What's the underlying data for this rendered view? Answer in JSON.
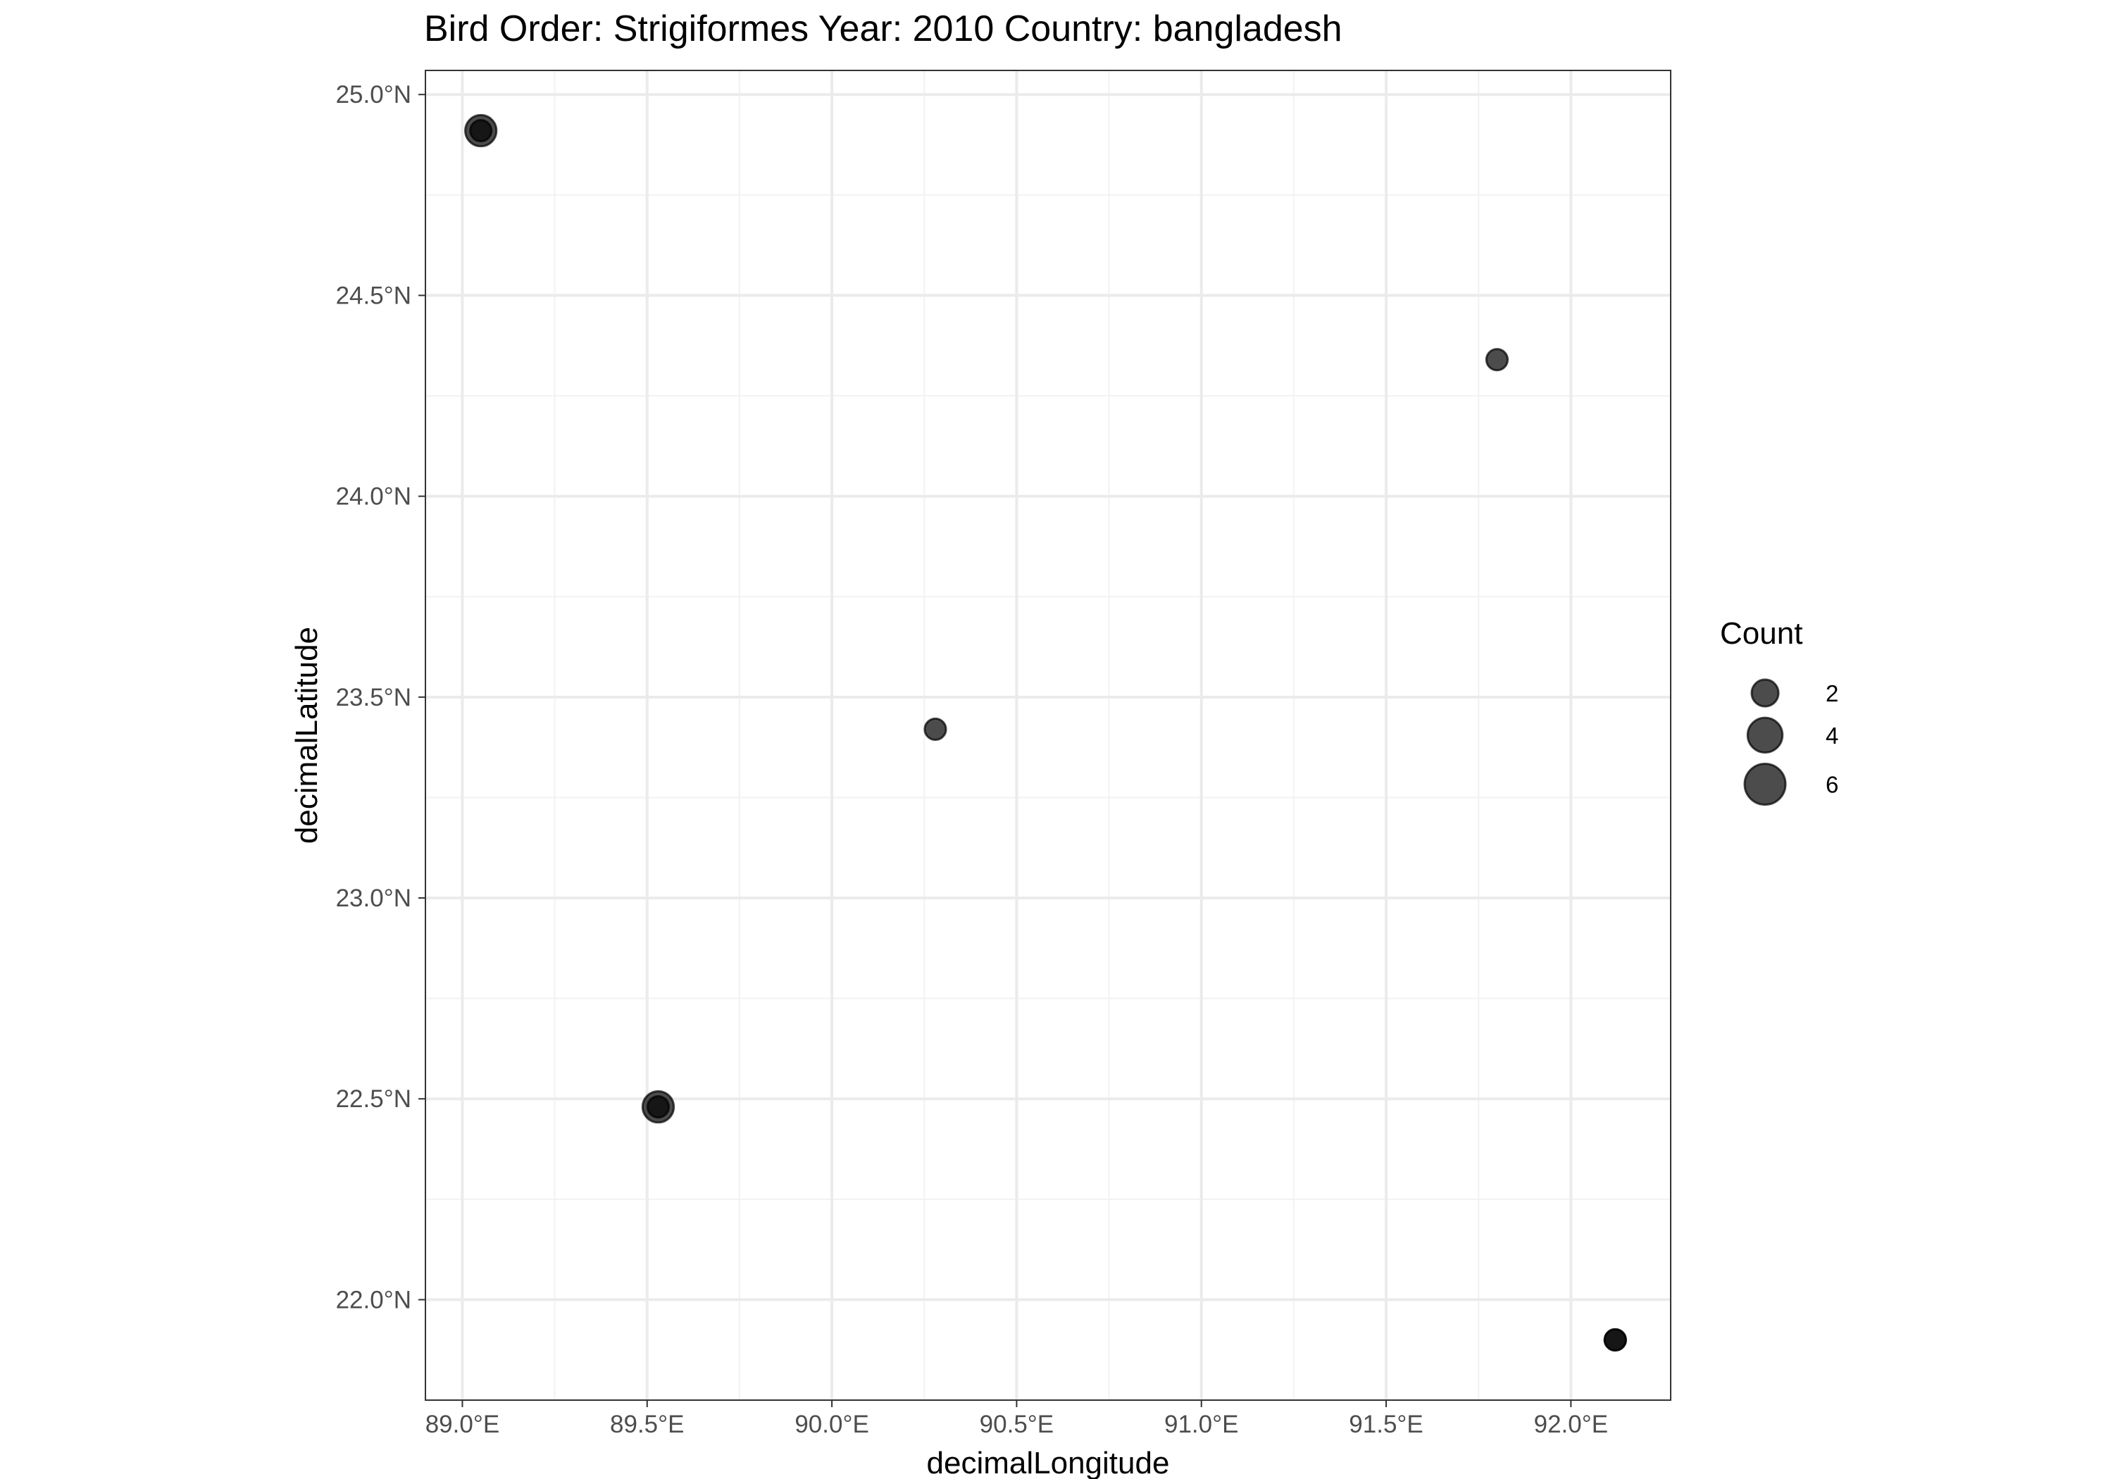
{
  "chart_data": {
    "type": "scatter",
    "title": "Bird Order: Strigiformes Year: 2010 Country: bangladesh",
    "xlabel": "decimalLongitude",
    "ylabel": "decimalLatitude",
    "xlim": [
      88.9,
      92.27
    ],
    "ylim": [
      21.75,
      25.06
    ],
    "x_ticks": [
      {
        "value": 89.0,
        "label": "89.0°E"
      },
      {
        "value": 89.5,
        "label": "89.5°E"
      },
      {
        "value": 90.0,
        "label": "90.0°E"
      },
      {
        "value": 90.5,
        "label": "90.5°E"
      },
      {
        "value": 91.0,
        "label": "91.0°E"
      },
      {
        "value": 91.5,
        "label": "91.5°E"
      },
      {
        "value": 92.0,
        "label": "92.0°E"
      }
    ],
    "y_ticks": [
      {
        "value": 22.0,
        "label": "22.0°N"
      },
      {
        "value": 22.5,
        "label": "22.5°N"
      },
      {
        "value": 23.0,
        "label": "23.0°N"
      },
      {
        "value": 23.5,
        "label": "23.5°N"
      },
      {
        "value": 24.0,
        "label": "24.0°N"
      },
      {
        "value": 24.5,
        "label": "24.5°N"
      },
      {
        "value": 25.0,
        "label": "25.0°N"
      }
    ],
    "grid": true,
    "points": [
      {
        "x": 89.05,
        "y": 24.91,
        "count": 3
      },
      {
        "x": 89.05,
        "y": 24.91,
        "count": 1
      },
      {
        "x": 89.53,
        "y": 22.48,
        "count": 3
      },
      {
        "x": 89.53,
        "y": 22.48,
        "count": 1
      },
      {
        "x": 90.28,
        "y": 23.42,
        "count": 1
      },
      {
        "x": 91.8,
        "y": 24.34,
        "count": 1
      },
      {
        "x": 92.12,
        "y": 21.9,
        "count": 1
      },
      {
        "x": 92.12,
        "y": 21.9,
        "count": 1
      }
    ],
    "point_color": "#000000",
    "point_alpha": 0.7,
    "legend": {
      "title": "Count",
      "position": "right",
      "entries": [
        {
          "value": 2,
          "label": "2"
        },
        {
          "value": 4,
          "label": "4"
        },
        {
          "value": 6,
          "label": "6"
        }
      ]
    }
  }
}
